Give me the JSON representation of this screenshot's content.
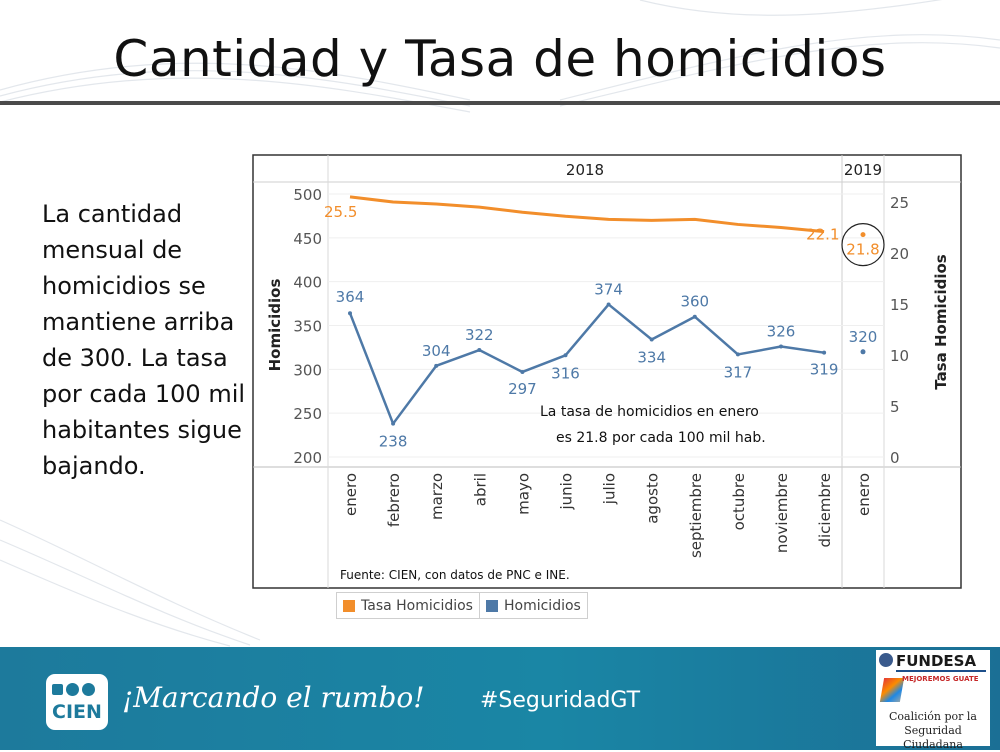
{
  "slide": {
    "title": "Cantidad y Tasa de homicidios",
    "side_text": "La cantidad mensual de homicidios se mantiene arriba de 300. La tasa por cada 100 mil habitantes sigue bajando."
  },
  "chart_data": {
    "type": "line",
    "year_headers": [
      "2018",
      "2019"
    ],
    "categories": [
      "enero",
      "febrero",
      "marzo",
      "abril",
      "mayo",
      "junio",
      "julio",
      "agosto",
      "septiembre",
      "octubre",
      "noviembre",
      "diciembre"
    ],
    "categories_2019": [
      "enero"
    ],
    "series": [
      {
        "name": "Homicidios",
        "axis": "left",
        "color": "#4e79a7",
        "values_2018": [
          364,
          238,
          304,
          322,
          297,
          316,
          374,
          334,
          360,
          317,
          326,
          319
        ],
        "values_2019": [
          320
        ],
        "labels_2018": [
          "364",
          "238",
          "304",
          "322",
          "297",
          "316",
          "374",
          "334",
          "360",
          "317",
          "326",
          "319"
        ],
        "labels_2019": [
          "320"
        ]
      },
      {
        "name": "Tasa Homicidios",
        "axis": "right",
        "color": "#f28e2b",
        "values_2018": [
          25.5,
          25.0,
          24.8,
          24.5,
          24.0,
          23.6,
          23.3,
          23.2,
          23.3,
          22.8,
          22.5,
          22.1
        ],
        "values_2019": [
          21.8
        ],
        "labels_2018": [
          "25.5",
          "",
          "",
          "",
          "",
          "",
          "",
          "",
          "",
          "",
          "",
          "22.1"
        ],
        "labels_2019": [
          "21.8"
        ]
      }
    ],
    "left_axis": {
      "label": "Homicidios",
      "ticks": [
        "500",
        "450",
        "400",
        "350",
        "300",
        "250",
        "200"
      ],
      "tick_values": [
        500,
        450,
        400,
        350,
        300,
        250,
        200
      ]
    },
    "right_axis": {
      "label": "Tasa Homicidios",
      "ticks": [
        "25",
        "20",
        "15",
        "10",
        "5",
        "0"
      ],
      "tick_values": [
        25,
        20,
        15,
        10,
        5,
        0
      ]
    },
    "annotation": [
      "La tasa de homicidios en enero",
      "es 21.8 por cada 100 mil hab."
    ],
    "source": "Fuente: CIEN, con datos de PNC e INE.",
    "legend": [
      "Tasa Homicidios",
      "Homicidios"
    ]
  },
  "footer": {
    "logo_text": "CIEN",
    "slogan": "¡Marcando el rumbo!",
    "hashtag": "#SeguridadGT",
    "partner_logo": "FUNDESA",
    "partner_sub": "MEJOREMOS GUATE",
    "partner_caption": [
      "Coalición por la",
      "Seguridad Ciudadana"
    ]
  },
  "colors": {
    "footer_bg": "#1a86a5",
    "homicidios": "#4e79a7",
    "tasa": "#f28e2b"
  }
}
